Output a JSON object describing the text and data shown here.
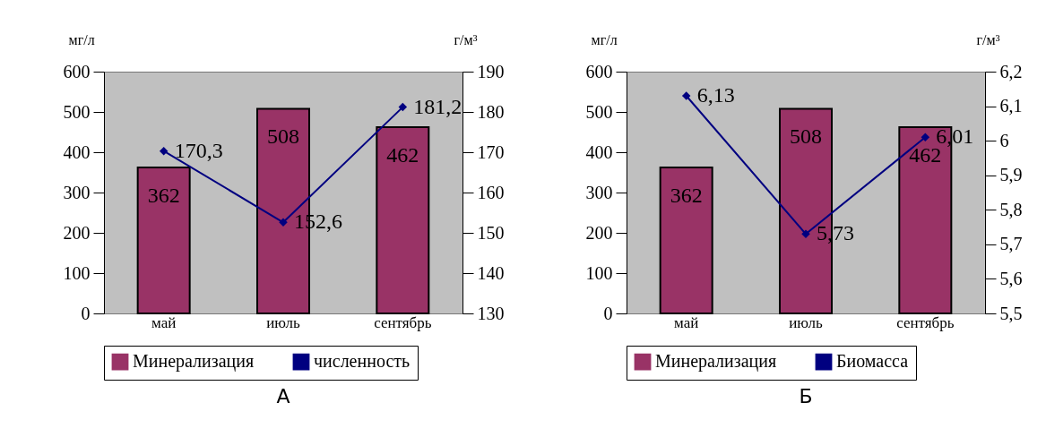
{
  "chart_data": [
    {
      "type": "bar",
      "title": "А",
      "categories": [
        "май",
        "июль",
        "сентябрь"
      ],
      "ylabel": "мг/л",
      "y2label": "г/м³",
      "ylim": [
        0,
        600
      ],
      "yticks": [
        0,
        100,
        200,
        300,
        400,
        500,
        600
      ],
      "y2lim": [
        130,
        190
      ],
      "y2ticks": [
        130,
        140,
        150,
        160,
        170,
        180,
        190
      ],
      "legend": "bottom",
      "marker": "diamond",
      "series": [
        {
          "name": "Минерализация",
          "color": "#993366",
          "values": [
            362,
            508,
            462
          ],
          "value_labels": [
            "362",
            "508",
            "462"
          ]
        },
        {
          "name": "численность",
          "type": "line",
          "axis": "y2",
          "color": "#000080",
          "values": [
            170.3,
            152.6,
            181.2
          ],
          "value_labels": [
            "170,3",
            "152,6",
            "181,2"
          ]
        }
      ]
    },
    {
      "type": "bar",
      "title": "Б",
      "categories": [
        "май",
        "июль",
        "сентябрь"
      ],
      "ylabel": "мг/л",
      "y2label": "г/м³",
      "ylim": [
        0,
        600
      ],
      "yticks": [
        0,
        100,
        200,
        300,
        400,
        500,
        600
      ],
      "y2lim": [
        5.5,
        6.2
      ],
      "y2ticks": [
        {
          "value": 5.5,
          "label": "5,5"
        },
        {
          "value": 5.6,
          "label": "5,6"
        },
        {
          "value": 5.7,
          "label": "5,7"
        },
        {
          "value": 5.8,
          "label": "5,8"
        },
        {
          "value": 5.9,
          "label": "5,9"
        },
        {
          "value": 6,
          "label": "6"
        },
        {
          "value": 6.1,
          "label": "6,1"
        },
        {
          "value": 6.2,
          "label": "6,2"
        }
      ],
      "legend": "bottom",
      "marker": "diamond",
      "series": [
        {
          "name": "Минерализация",
          "color": "#993366",
          "values": [
            362,
            508,
            462
          ],
          "value_labels": [
            "362",
            "508",
            "462"
          ]
        },
        {
          "name": "Биомасса",
          "type": "line",
          "axis": "y2",
          "color": "#000080",
          "values": [
            6.13,
            5.73,
            6.01
          ],
          "value_labels": [
            "6,13",
            "5,73",
            "6,01"
          ]
        }
      ]
    }
  ]
}
